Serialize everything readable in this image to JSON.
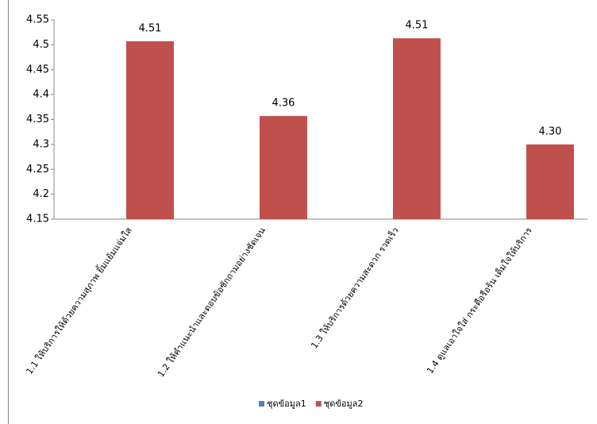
{
  "chart_data": {
    "type": "bar",
    "categories": [
      "1.1 ให้บริการให้ด้วยความสุภาพ ยิ้มแย้มแจ่มใส",
      "1.2 ให้คำแนะนำและตอบข้อซักถามอย่างชัดเจน",
      "1.3 ให้บริการด้วยความสะดวก รวดเร็ว",
      "1.4 ดูแลเอาใจใส่ กระตือรือร้น เต็มใจให้บริการ"
    ],
    "series": [
      {
        "name": "ชุดข้อมูล1",
        "color": "#4f81bd",
        "values": [
          null,
          null,
          null,
          null
        ]
      },
      {
        "name": "ชุดข้อมูล2",
        "color": "#c0504d",
        "values": [
          4.507,
          4.357,
          4.513,
          4.3
        ],
        "value_labels": [
          "4.51",
          "4.36",
          "4.51",
          "4.30"
        ]
      }
    ],
    "ylim": [
      4.15,
      4.55
    ],
    "yticks": [
      4.15,
      4.2,
      4.25,
      4.3,
      4.35,
      4.4,
      4.45,
      4.5,
      4.55
    ],
    "grid": false,
    "legend": "bottom"
  }
}
